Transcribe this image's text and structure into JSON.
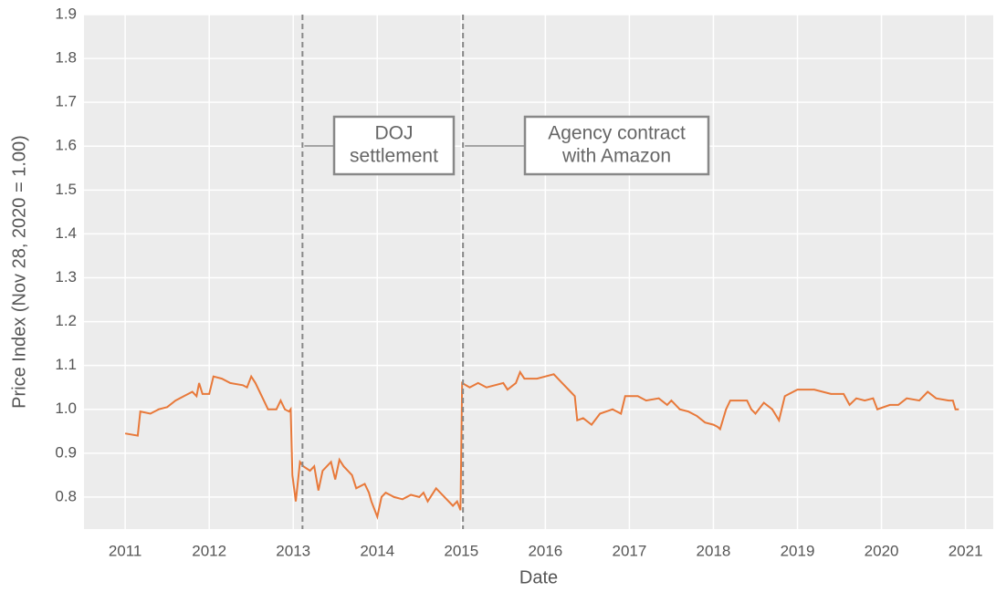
{
  "chart_data": {
    "type": "line",
    "xlabel": "Date",
    "ylabel": "Price Index (Nov 28, 2020 = 1.00)",
    "color": "#e8793a",
    "grid": true,
    "xlim": [
      2010.51,
      2021.33
    ],
    "ylim": [
      0.727,
      1.9
    ],
    "xticks": [
      2011,
      2012,
      2013,
      2014,
      2015,
      2016,
      2017,
      2018,
      2019,
      2020,
      2021
    ],
    "yticks": [
      0.8,
      0.9,
      {
        "value": 1,
        "label": "1.0"
      },
      1.1,
      1.2,
      1.3,
      1.4,
      1.5,
      1.6,
      1.7,
      1.8,
      1.9
    ],
    "annotations": [
      {
        "x": 2013.11,
        "lines": [
          "DOJ",
          "settlement"
        ]
      },
      {
        "x": 2015.02,
        "lines": [
          "Agency contract",
          "with Amazon"
        ]
      }
    ],
    "x": [
      2011.0,
      2011.15,
      2011.18,
      2011.3,
      2011.4,
      2011.5,
      2011.6,
      2011.7,
      2011.8,
      2011.85,
      2011.88,
      2011.92,
      2012.0,
      2012.05,
      2012.15,
      2012.25,
      2012.4,
      2012.45,
      2012.5,
      2012.55,
      2012.65,
      2012.7,
      2012.8,
      2012.85,
      2012.9,
      2012.95,
      2012.97,
      2012.99,
      2013.03,
      2013.08,
      2013.12,
      2013.2,
      2013.25,
      2013.3,
      2013.35,
      2013.45,
      2013.5,
      2013.55,
      2013.6,
      2013.7,
      2013.75,
      2013.85,
      2013.9,
      2013.93,
      2014.0,
      2014.05,
      2014.1,
      2014.2,
      2014.3,
      2014.4,
      2014.5,
      2014.55,
      2014.6,
      2014.7,
      2014.8,
      2014.9,
      2014.95,
      2014.99,
      2015.01,
      2015.1,
      2015.2,
      2015.3,
      2015.4,
      2015.5,
      2015.55,
      2015.65,
      2015.7,
      2015.75,
      2015.9,
      2016.0,
      2016.1,
      2016.2,
      2016.3,
      2016.35,
      2016.38,
      2016.45,
      2016.55,
      2016.65,
      2016.8,
      2016.9,
      2016.95,
      2017.1,
      2017.2,
      2017.35,
      2017.45,
      2017.5,
      2017.6,
      2017.7,
      2017.8,
      2017.9,
      2018.0,
      2018.05,
      2018.08,
      2018.15,
      2018.2,
      2018.4,
      2018.45,
      2018.5,
      2018.6,
      2018.7,
      2018.78,
      2018.85,
      2019.0,
      2019.2,
      2019.4,
      2019.55,
      2019.62,
      2019.7,
      2019.8,
      2019.9,
      2019.95,
      2020.1,
      2020.2,
      2020.3,
      2020.45,
      2020.55,
      2020.65,
      2020.8,
      2020.85,
      2020.88,
      2020.92
    ],
    "values": [
      0.945,
      0.94,
      0.995,
      0.99,
      1.0,
      1.005,
      1.02,
      1.03,
      1.04,
      1.03,
      1.06,
      1.035,
      1.035,
      1.075,
      1.07,
      1.06,
      1.055,
      1.05,
      1.075,
      1.06,
      1.02,
      1.0,
      1.0,
      1.02,
      1.0,
      0.995,
      1.0,
      0.85,
      0.79,
      0.88,
      0.87,
      0.86,
      0.87,
      0.815,
      0.86,
      0.88,
      0.84,
      0.885,
      0.87,
      0.85,
      0.82,
      0.83,
      0.81,
      0.79,
      0.755,
      0.8,
      0.81,
      0.8,
      0.795,
      0.805,
      0.8,
      0.81,
      0.79,
      0.82,
      0.8,
      0.78,
      0.79,
      0.77,
      1.06,
      1.05,
      1.06,
      1.05,
      1.055,
      1.06,
      1.045,
      1.06,
      1.085,
      1.07,
      1.07,
      1.075,
      1.08,
      1.06,
      1.04,
      1.03,
      0.975,
      0.98,
      0.965,
      0.99,
      1.0,
      0.99,
      1.03,
      1.03,
      1.02,
      1.025,
      1.01,
      1.02,
      1.0,
      0.995,
      0.985,
      0.97,
      0.965,
      0.96,
      0.955,
      1.0,
      1.02,
      1.02,
      1.0,
      0.99,
      1.015,
      1.0,
      0.975,
      1.03,
      1.045,
      1.045,
      1.035,
      1.035,
      1.01,
      1.025,
      1.02,
      1.025,
      1.0,
      1.01,
      1.01,
      1.025,
      1.02,
      1.04,
      1.025,
      1.02,
      1.02,
      1.0,
      1.0
    ]
  }
}
